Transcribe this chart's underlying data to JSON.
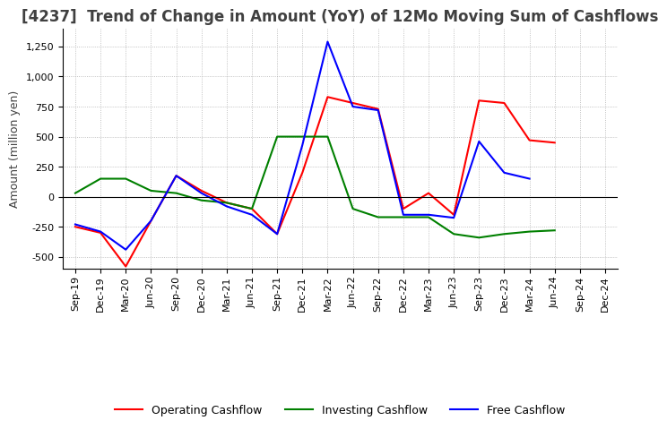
{
  "title": "[4237]  Trend of Change in Amount (YoY) of 12Mo Moving Sum of Cashflows",
  "ylabel": "Amount (million yen)",
  "x_labels": [
    "Sep-19",
    "Dec-19",
    "Mar-20",
    "Jun-20",
    "Sep-20",
    "Dec-20",
    "Mar-21",
    "Jun-21",
    "Sep-21",
    "Dec-21",
    "Mar-22",
    "Jun-22",
    "Sep-22",
    "Dec-22",
    "Mar-23",
    "Jun-23",
    "Sep-23",
    "Dec-23",
    "Mar-24",
    "Jun-24",
    "Sep-24",
    "Dec-24"
  ],
  "operating": [
    -250,
    -300,
    -580,
    -200,
    175,
    50,
    -50,
    -100,
    -310,
    200,
    830,
    780,
    730,
    -100,
    30,
    -150,
    800,
    780,
    470,
    450,
    null,
    null
  ],
  "investing": [
    30,
    150,
    150,
    50,
    30,
    -30,
    -50,
    -100,
    500,
    500,
    500,
    -100,
    -170,
    -170,
    -170,
    -310,
    -340,
    -310,
    -290,
    -280,
    null,
    null
  ],
  "free": [
    -230,
    -290,
    -440,
    -200,
    175,
    30,
    -80,
    -150,
    -310,
    430,
    1290,
    750,
    720,
    -150,
    -150,
    -175,
    460,
    200,
    150,
    null,
    null,
    null
  ],
  "operating_color": "#ff0000",
  "investing_color": "#008000",
  "free_color": "#0000ff",
  "ylim": [
    -600,
    1400
  ],
  "yticks": [
    -500,
    -250,
    0,
    250,
    500,
    750,
    1000,
    1250
  ],
  "background_color": "#ffffff",
  "grid_color": "#b0b0b0",
  "title_color": "#404040",
  "title_fontsize": 12,
  "label_fontsize": 9,
  "tick_fontsize": 8,
  "legend_fontsize": 9
}
